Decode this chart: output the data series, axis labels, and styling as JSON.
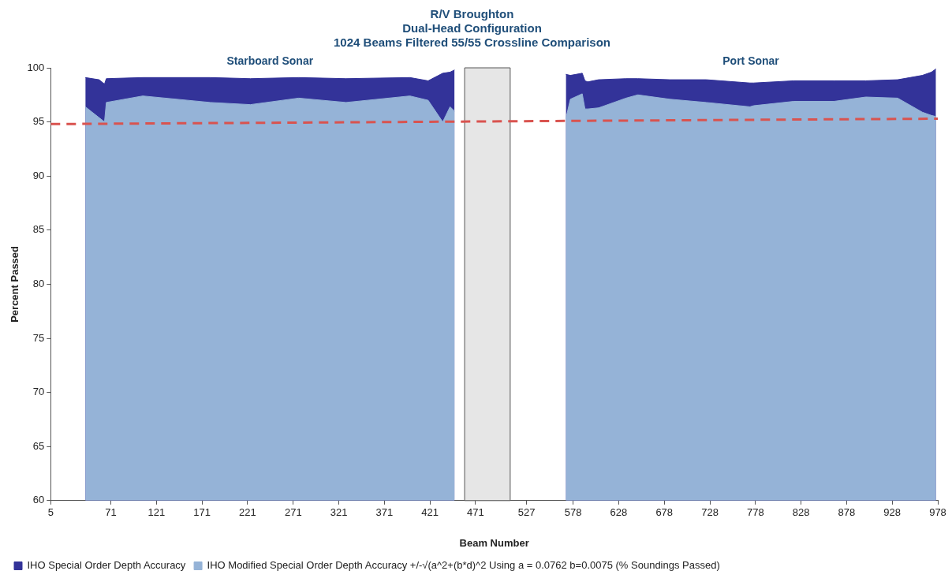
{
  "chart_data": {
    "type": "area",
    "title": "R/V Broughton\nDual-Head Configuration\n1024 Beams Filtered 55/55 Crossline Comparison",
    "xlabel": "Beam Number",
    "ylabel": "Percent Passed",
    "x": [
      43,
      58,
      64,
      66,
      106,
      180,
      224,
      277,
      329,
      399,
      419,
      435,
      443,
      448,
      500,
      570,
      575,
      588,
      591,
      594,
      606,
      636,
      649,
      684,
      724,
      772,
      776,
      820,
      864,
      899,
      934,
      961,
      971,
      976
    ],
    "series": [
      {
        "name": "IHO Special Order Depth Accuracy",
        "color": "#333399",
        "values": [
          99.1,
          98.9,
          98.5,
          99.0,
          99.1,
          99.1,
          99.0,
          99.1,
          99.0,
          99.1,
          98.8,
          99.5,
          99.6,
          99.8,
          null,
          99.4,
          99.3,
          99.5,
          98.8,
          98.7,
          98.9,
          99.0,
          99.0,
          98.9,
          98.9,
          98.6,
          98.6,
          98.8,
          98.8,
          98.8,
          98.9,
          99.3,
          99.6,
          99.9
        ]
      },
      {
        "name": "IHO Modified Special Order Depth Accuracy +/-√(a^2+(b*d)^2 Using a = 0.0762 b=0.0075 (% Soundings Passed)",
        "color": "#95b3d7",
        "values": [
          96.4,
          95.4,
          95.0,
          96.8,
          97.4,
          96.8,
          96.6,
          97.2,
          96.8,
          97.4,
          97.0,
          95.0,
          96.4,
          96.0,
          null,
          95.3,
          97.1,
          97.6,
          96.2,
          96.2,
          96.3,
          97.2,
          97.5,
          97.1,
          96.8,
          96.4,
          96.5,
          96.9,
          96.9,
          97.3,
          97.2,
          95.9,
          95.6,
          95.5
        ]
      },
      {
        "type": "line",
        "color": "#d9534f",
        "line_style": "dashed",
        "x": [
          5,
          978
        ],
        "values": [
          94.8,
          95.3
        ]
      }
    ],
    "bands": [
      {
        "axis": "x",
        "from": 459,
        "to": 509,
        "color": "#e6e6e6"
      }
    ],
    "annotations": [
      "Starboard Sonar",
      "Port Sonar"
    ],
    "xlim": [
      5,
      978
    ],
    "xticks": [
      5,
      71,
      121,
      171,
      221,
      271,
      321,
      371,
      421,
      471,
      527,
      578,
      628,
      678,
      728,
      778,
      828,
      878,
      928,
      978
    ],
    "ylim": [
      60,
      100
    ],
    "yticks": [
      60,
      65,
      70,
      75,
      80,
      85,
      90,
      95,
      100
    ],
    "grid": false,
    "legend": "bottom",
    "marker": "none"
  }
}
